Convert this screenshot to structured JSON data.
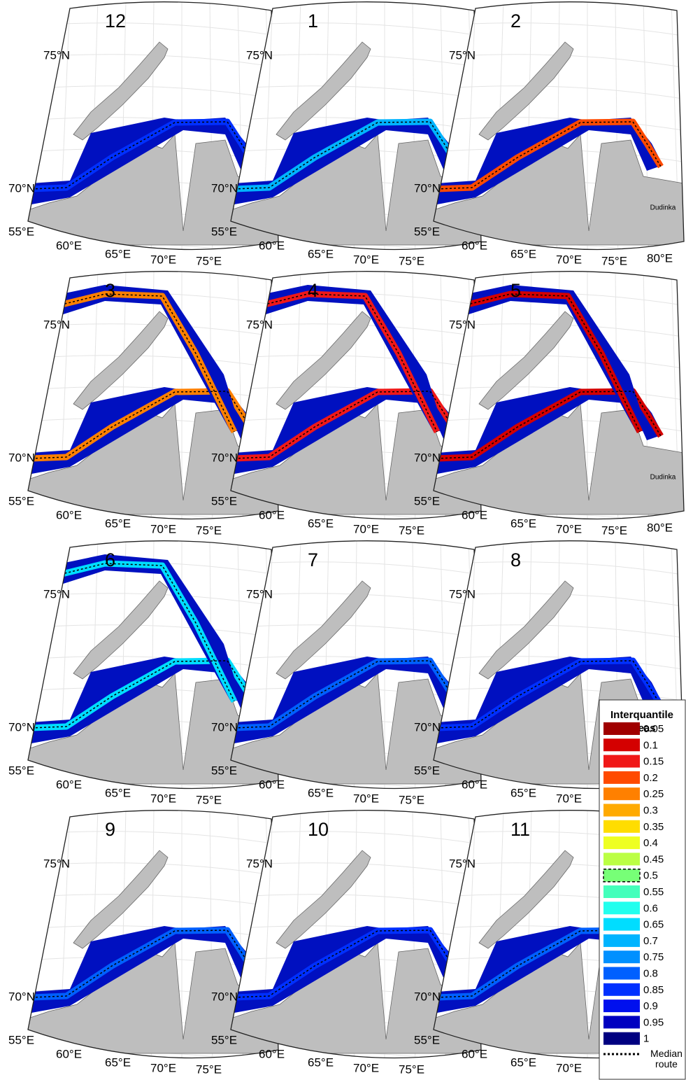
{
  "panels": [
    {
      "label": "12",
      "lat_labels": [
        "75°N",
        "70°N"
      ],
      "lon_labels": [
        "55°E",
        "60°E",
        "65°E",
        "70°E",
        "75°E"
      ]
    },
    {
      "label": "1",
      "lat_labels": [
        "75°N",
        "70°N"
      ],
      "lon_labels": [
        "55°E",
        "60°E",
        "65°E",
        "70°E",
        "75°E"
      ]
    },
    {
      "label": "2",
      "lat_labels": [
        "75°N",
        "70°N"
      ],
      "lon_labels": [
        "55°E",
        "60°E",
        "65°E",
        "70°E",
        "75°E",
        "80°E"
      ],
      "place": "Dudinka"
    },
    {
      "label": "3",
      "lat_labels": [
        "75°N",
        "70°N"
      ],
      "lon_labels": [
        "55°E",
        "60°E",
        "65°E",
        "70°E",
        "75°E"
      ]
    },
    {
      "label": "4",
      "lat_labels": [
        "75°N",
        "70°N"
      ],
      "lon_labels": [
        "55°E",
        "60°E",
        "65°E",
        "70°E",
        "75°E"
      ]
    },
    {
      "label": "5",
      "lat_labels": [
        "75°N",
        "70°N"
      ],
      "lon_labels": [
        "55°E",
        "60°E",
        "65°E",
        "70°E",
        "75°E",
        "80°E"
      ],
      "place": "Dudinka"
    },
    {
      "label": "6",
      "lat_labels": [
        "75°N",
        "70°N"
      ],
      "lon_labels": [
        "55°E",
        "60°E",
        "65°E",
        "70°E",
        "75°E"
      ]
    },
    {
      "label": "7",
      "lat_labels": [
        "75°N",
        "70°N"
      ],
      "lon_labels": [
        "55°E",
        "60°E",
        "65°E",
        "70°E",
        "75°E"
      ]
    },
    {
      "label": "8",
      "lat_labels": [
        "75°N",
        "70°N"
      ],
      "lon_labels": [
        "55°E",
        "60°E",
        "65°E",
        "70°E"
      ]
    },
    {
      "label": "9",
      "lat_labels": [
        "75°N",
        "70°N"
      ],
      "lon_labels": [
        "55°E",
        "60°E",
        "65°E",
        "70°E",
        "75°E"
      ]
    },
    {
      "label": "10",
      "lat_labels": [
        "75°N",
        "70°N"
      ],
      "lon_labels": [
        "55°E",
        "60°E",
        "65°E",
        "70°E",
        "75°E"
      ]
    },
    {
      "label": "11",
      "lat_labels": [
        "75°N",
        "70°N"
      ],
      "lon_labels": [
        "55°E",
        "60°E",
        "65°E",
        "70°E"
      ]
    }
  ],
  "legend": {
    "title": "Interquantile areas",
    "items": [
      {
        "label": "0.05",
        "color": "#a00000"
      },
      {
        "label": "0.1",
        "color": "#d40000"
      },
      {
        "label": "0.15",
        "color": "#f01818"
      },
      {
        "label": "0.2",
        "color": "#ff4a00"
      },
      {
        "label": "0.25",
        "color": "#ff8000"
      },
      {
        "label": "0.3",
        "color": "#ffaa00"
      },
      {
        "label": "0.35",
        "color": "#ffdd00"
      },
      {
        "label": "0.4",
        "color": "#eeff22"
      },
      {
        "label": "0.45",
        "color": "#bbff44"
      },
      {
        "label": "0.5",
        "color": "#77ff77"
      },
      {
        "label": "0.55",
        "color": "#44ffbb"
      },
      {
        "label": "0.6",
        "color": "#22ffee"
      },
      {
        "label": "0.65",
        "color": "#00ddff"
      },
      {
        "label": "0.7",
        "color": "#00b4ff"
      },
      {
        "label": "0.75",
        "color": "#0090ff"
      },
      {
        "label": "0.8",
        "color": "#0060ff"
      },
      {
        "label": "0.85",
        "color": "#0030ff"
      },
      {
        "label": "0.9",
        "color": "#0010ee"
      },
      {
        "label": "0.95",
        "color": "#0000c0"
      },
      {
        "label": "1",
        "color": "#000080"
      }
    ],
    "median_label": "Median route"
  }
}
